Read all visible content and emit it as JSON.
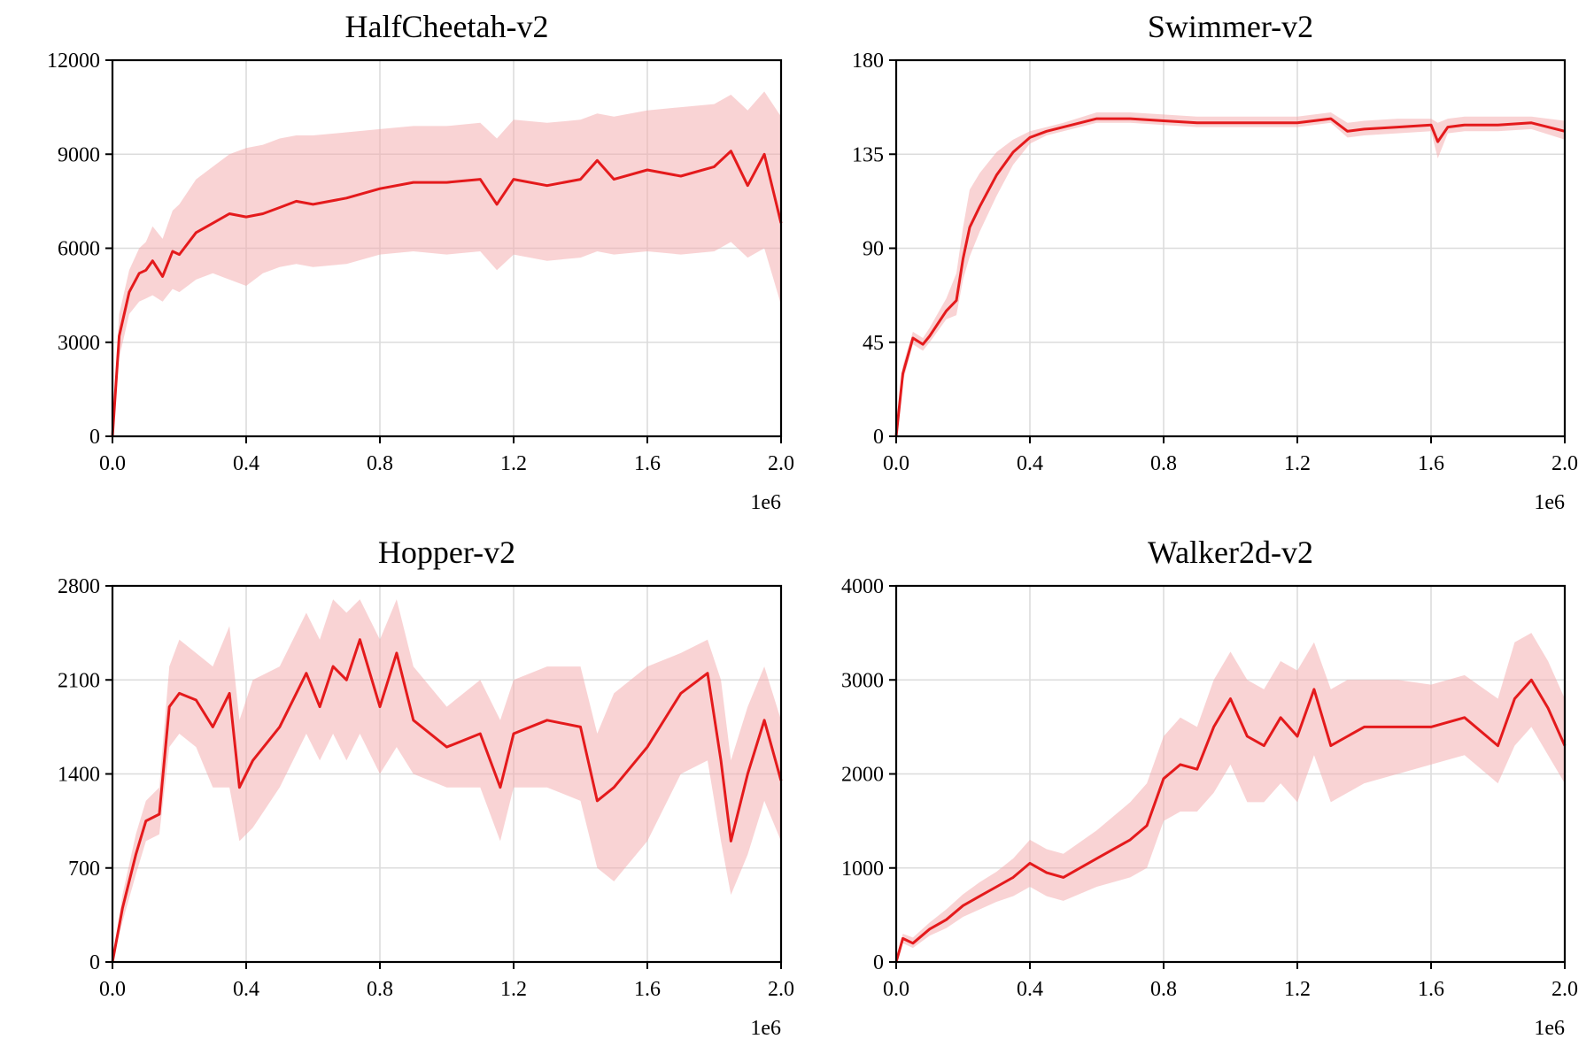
{
  "chart_data": [
    {
      "type": "line",
      "title": "HalfCheetah-v2",
      "xlabel": "",
      "ylabel": "",
      "x_unit_label": "1e6",
      "xlim": [
        0,
        2.0
      ],
      "ylim": [
        0,
        12000
      ],
      "xticks": [
        "0.0",
        "0.4",
        "0.8",
        "1.2",
        "1.6",
        "2.0"
      ],
      "yticks": [
        "0",
        "3000",
        "6000",
        "9000",
        "12000"
      ],
      "grid": true,
      "color": "#e41a1c",
      "band_color": "#f4a7a9",
      "series": [
        {
          "x": [
            0.0,
            0.02,
            0.05,
            0.08,
            0.1,
            0.12,
            0.15,
            0.18,
            0.2,
            0.25,
            0.3,
            0.35,
            0.4,
            0.45,
            0.5,
            0.55,
            0.6,
            0.7,
            0.8,
            0.9,
            1.0,
            1.1,
            1.15,
            1.2,
            1.3,
            1.4,
            1.45,
            1.5,
            1.6,
            1.7,
            1.8,
            1.85,
            1.9,
            1.95,
            2.0
          ],
          "mean": [
            0,
            3200,
            4600,
            5200,
            5300,
            5600,
            5100,
            5900,
            5800,
            6500,
            6800,
            7100,
            7000,
            7100,
            7300,
            7500,
            7400,
            7600,
            7900,
            8100,
            8100,
            8200,
            7400,
            8200,
            8000,
            8200,
            8800,
            8200,
            8500,
            8300,
            8600,
            9100,
            8000,
            9000,
            6800
          ],
          "lower": [
            0,
            2500,
            3900,
            4300,
            4400,
            4500,
            4300,
            4700,
            4600,
            5000,
            5200,
            5000,
            4800,
            5200,
            5400,
            5500,
            5400,
            5500,
            5800,
            5900,
            5800,
            5900,
            5300,
            5800,
            5600,
            5700,
            5900,
            5800,
            5900,
            5800,
            5900,
            6200,
            5700,
            6000,
            4200
          ],
          "upper": [
            0,
            3900,
            5300,
            6000,
            6200,
            6700,
            6300,
            7200,
            7400,
            8200,
            8600,
            9000,
            9200,
            9300,
            9500,
            9600,
            9600,
            9700,
            9800,
            9900,
            9900,
            10000,
            9500,
            10100,
            10000,
            10100,
            10300,
            10200,
            10400,
            10500,
            10600,
            10900,
            10400,
            11000,
            10200
          ]
        }
      ]
    },
    {
      "type": "line",
      "title": "Swimmer-v2",
      "xlabel": "",
      "ylabel": "",
      "x_unit_label": "1e6",
      "xlim": [
        0,
        2.0
      ],
      "ylim": [
        0,
        180
      ],
      "xticks": [
        "0.0",
        "0.4",
        "0.8",
        "1.2",
        "1.6",
        "2.0"
      ],
      "yticks": [
        "0",
        "45",
        "90",
        "135",
        "180"
      ],
      "grid": true,
      "color": "#e41a1c",
      "band_color": "#f4a7a9",
      "series": [
        {
          "x": [
            0.0,
            0.02,
            0.05,
            0.08,
            0.1,
            0.15,
            0.18,
            0.2,
            0.22,
            0.25,
            0.3,
            0.35,
            0.4,
            0.45,
            0.5,
            0.6,
            0.7,
            0.8,
            0.9,
            1.0,
            1.1,
            1.2,
            1.3,
            1.35,
            1.4,
            1.5,
            1.6,
            1.62,
            1.65,
            1.7,
            1.8,
            1.9,
            2.0
          ],
          "mean": [
            0,
            30,
            47,
            44,
            48,
            60,
            65,
            85,
            100,
            110,
            125,
            136,
            143,
            146,
            148,
            152,
            152,
            151,
            150,
            150,
            150,
            150,
            152,
            146,
            147,
            148,
            149,
            141,
            148,
            149,
            149,
            150,
            146
          ],
          "lower": [
            0,
            26,
            44,
            41,
            45,
            56,
            58,
            75,
            86,
            98,
            115,
            130,
            140,
            144,
            146,
            150,
            150,
            149,
            148,
            148,
            148,
            148,
            150,
            143,
            144,
            145,
            146,
            133,
            145,
            146,
            146,
            147,
            142
          ],
          "upper": [
            0,
            34,
            50,
            47,
            52,
            66,
            78,
            100,
            118,
            126,
            136,
            142,
            146,
            148,
            150,
            155,
            155,
            154,
            153,
            153,
            153,
            153,
            155,
            150,
            151,
            152,
            152,
            150,
            152,
            153,
            153,
            153,
            151
          ]
        }
      ]
    },
    {
      "type": "line",
      "title": "Hopper-v2",
      "xlabel": "",
      "ylabel": "",
      "x_unit_label": "1e6",
      "xlim": [
        0,
        2.0
      ],
      "ylim": [
        0,
        2800
      ],
      "xticks": [
        "0.0",
        "0.4",
        "0.8",
        "1.2",
        "1.6",
        "2.0"
      ],
      "yticks": [
        "0",
        "700",
        "1400",
        "2100",
        "2800"
      ],
      "grid": true,
      "color": "#e41a1c",
      "band_color": "#f4a7a9",
      "series": [
        {
          "x": [
            0.0,
            0.03,
            0.07,
            0.1,
            0.14,
            0.17,
            0.2,
            0.25,
            0.3,
            0.35,
            0.38,
            0.42,
            0.5,
            0.58,
            0.62,
            0.66,
            0.7,
            0.74,
            0.8,
            0.85,
            0.9,
            1.0,
            1.1,
            1.16,
            1.2,
            1.3,
            1.4,
            1.45,
            1.5,
            1.6,
            1.7,
            1.78,
            1.82,
            1.85,
            1.9,
            1.95,
            2.0
          ],
          "mean": [
            0,
            400,
            800,
            1050,
            1100,
            1900,
            2000,
            1950,
            1750,
            2000,
            1300,
            1500,
            1750,
            2150,
            1900,
            2200,
            2100,
            2400,
            1900,
            2300,
            1800,
            1600,
            1700,
            1300,
            1700,
            1800,
            1750,
            1200,
            1300,
            1600,
            2000,
            2150,
            1500,
            900,
            1400,
            1800,
            1350
          ],
          "lower": [
            0,
            300,
            650,
            900,
            950,
            1600,
            1700,
            1600,
            1300,
            1300,
            900,
            1000,
            1300,
            1700,
            1500,
            1700,
            1500,
            1700,
            1400,
            1600,
            1400,
            1300,
            1300,
            900,
            1300,
            1300,
            1200,
            700,
            600,
            900,
            1400,
            1500,
            900,
            500,
            800,
            1200,
            900
          ],
          "upper": [
            0,
            500,
            950,
            1200,
            1300,
            2200,
            2400,
            2300,
            2200,
            2500,
            1800,
            2100,
            2200,
            2600,
            2400,
            2700,
            2600,
            2700,
            2400,
            2700,
            2200,
            1900,
            2100,
            1800,
            2100,
            2200,
            2200,
            1700,
            2000,
            2200,
            2300,
            2400,
            2100,
            1500,
            1900,
            2200,
            1800
          ]
        }
      ]
    },
    {
      "type": "line",
      "title": "Walker2d-v2",
      "xlabel": "",
      "ylabel": "",
      "x_unit_label": "1e6",
      "xlim": [
        0,
        2.0
      ],
      "ylim": [
        0,
        4000
      ],
      "xticks": [
        "0.0",
        "0.4",
        "0.8",
        "1.2",
        "1.6",
        "2.0"
      ],
      "yticks": [
        "0",
        "1000",
        "2000",
        "3000",
        "4000"
      ],
      "grid": true,
      "color": "#e41a1c",
      "band_color": "#f4a7a9",
      "series": [
        {
          "x": [
            0.0,
            0.02,
            0.05,
            0.1,
            0.15,
            0.2,
            0.25,
            0.3,
            0.35,
            0.4,
            0.45,
            0.5,
            0.6,
            0.7,
            0.75,
            0.8,
            0.85,
            0.9,
            0.95,
            1.0,
            1.05,
            1.1,
            1.15,
            1.2,
            1.25,
            1.3,
            1.35,
            1.4,
            1.5,
            1.6,
            1.7,
            1.8,
            1.85,
            1.9,
            1.95,
            2.0
          ],
          "mean": [
            0,
            250,
            200,
            350,
            450,
            600,
            700,
            800,
            900,
            1050,
            950,
            900,
            1100,
            1300,
            1450,
            1950,
            2100,
            2050,
            2500,
            2800,
            2400,
            2300,
            2600,
            2400,
            2900,
            2300,
            2400,
            2500,
            2500,
            2500,
            2600,
            2300,
            2800,
            3000,
            2700,
            2300
          ],
          "lower": [
            0,
            200,
            150,
            280,
            360,
            480,
            560,
            640,
            700,
            800,
            700,
            650,
            800,
            900,
            1000,
            1500,
            1600,
            1600,
            1800,
            2100,
            1700,
            1700,
            1900,
            1700,
            2200,
            1700,
            1800,
            1900,
            2000,
            2100,
            2200,
            1900,
            2300,
            2500,
            2200,
            1900
          ],
          "upper": [
            0,
            300,
            260,
            420,
            560,
            720,
            850,
            960,
            1100,
            1300,
            1200,
            1150,
            1400,
            1700,
            1900,
            2400,
            2600,
            2500,
            3000,
            3300,
            3000,
            2900,
            3200,
            3100,
            3400,
            2900,
            3000,
            3000,
            3000,
            2950,
            3050,
            2800,
            3400,
            3500,
            3200,
            2800
          ]
        }
      ]
    }
  ]
}
